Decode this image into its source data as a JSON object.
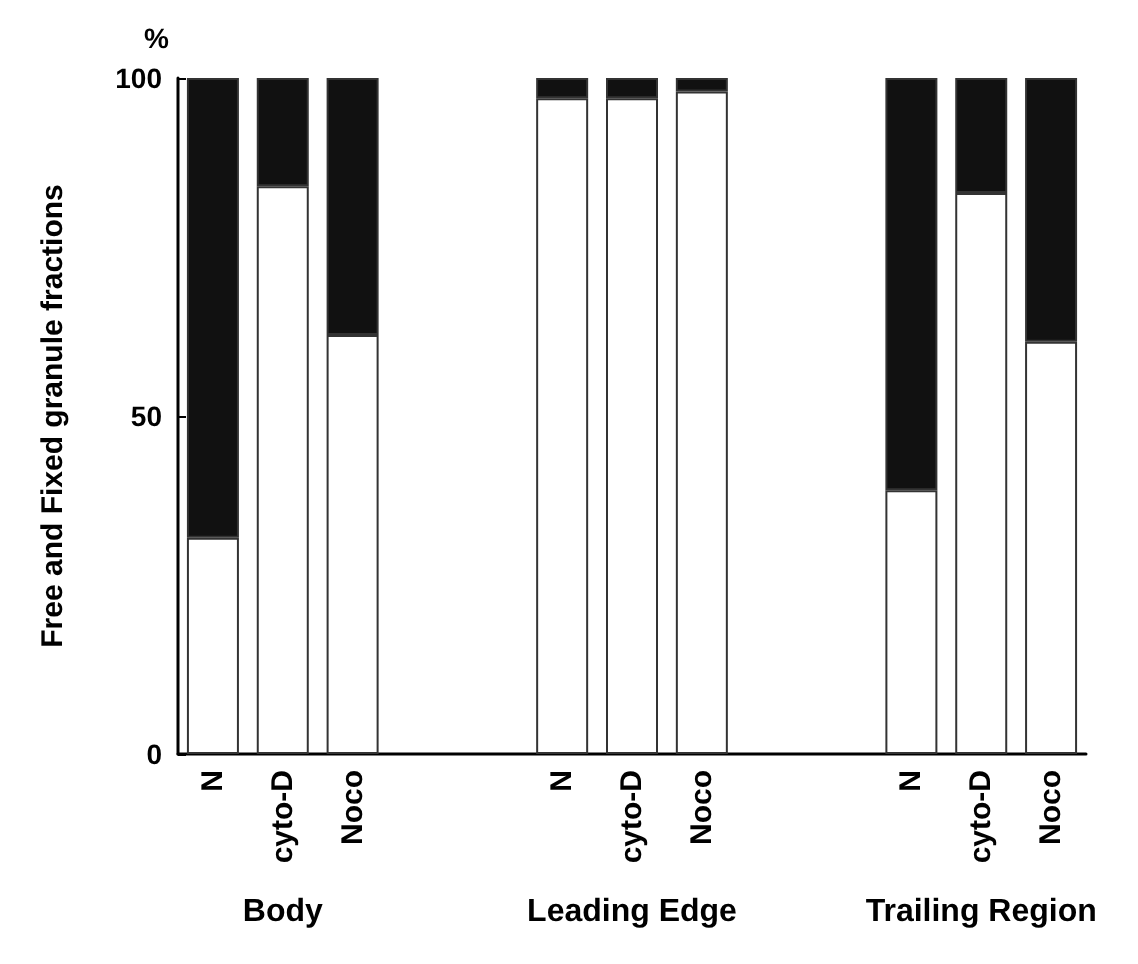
{
  "chart_data": {
    "type": "bar",
    "stacked": true,
    "ylabel": "Free and Fixed granule fractions",
    "annotations": [
      "%",
      "Body",
      "Leading Edge",
      "Trailing Region"
    ],
    "categories": [
      "N",
      "cyto-D",
      "Noco",
      null,
      null,
      "N",
      "cyto-D",
      "Noco",
      null,
      null,
      "N",
      "cyto-D",
      "Noco"
    ],
    "series": [
      {
        "color": "#ffffff",
        "values": [
          32,
          84,
          62,
          null,
          null,
          97,
          97,
          98,
          null,
          null,
          39,
          83,
          61
        ]
      },
      {
        "color": "#111111",
        "values": [
          68,
          16,
          38,
          null,
          null,
          3,
          3,
          2,
          null,
          null,
          61,
          17,
          39
        ]
      }
    ],
    "ylim": [
      0,
      100
    ],
    "yticks": [
      0,
      50,
      100
    ],
    "grid": false
  }
}
